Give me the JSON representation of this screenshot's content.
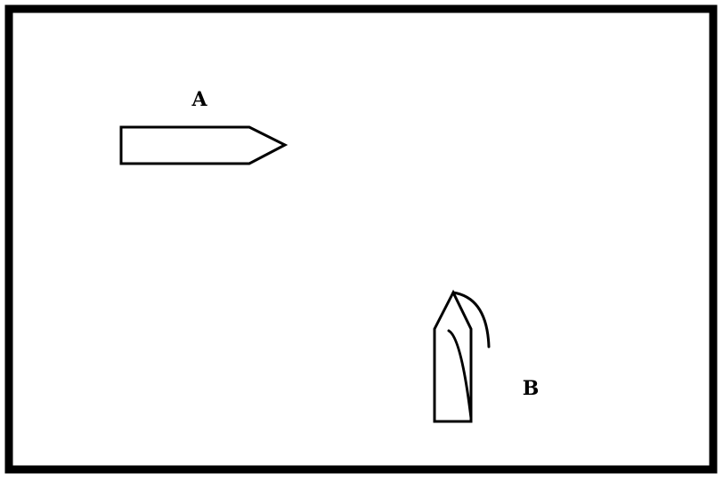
{
  "frame": {
    "border_color": "#000000",
    "background_color": "#ffffff"
  },
  "labels": {
    "a": "A",
    "b": "B"
  },
  "shapes": {
    "a": "arrow-pointing-right",
    "b": "arrow-pointing-up-with-curve"
  }
}
